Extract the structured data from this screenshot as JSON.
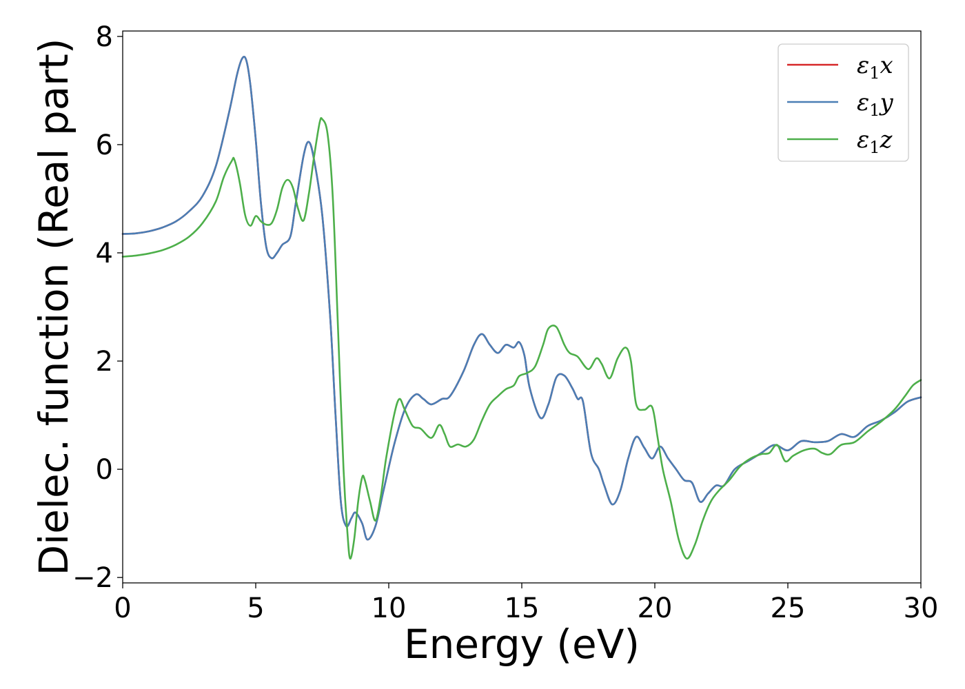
{
  "chart_data": {
    "type": "line",
    "xlabel": "Energy (eV)",
    "ylabel": "Dielec. function (Real part)",
    "xlim": [
      0,
      30
    ],
    "ylim": [
      -2.1,
      8.1
    ],
    "x_ticks": [
      0,
      5,
      10,
      15,
      20,
      25,
      30
    ],
    "y_ticks": [
      -2,
      0,
      2,
      4,
      6,
      8
    ],
    "x_tick_labels": [
      "0",
      "5",
      "10",
      "15",
      "20",
      "25",
      "30"
    ],
    "y_tick_labels": [
      "−2",
      "0",
      "2",
      "4",
      "6",
      "8"
    ],
    "grid": false,
    "legend_position": "top-right",
    "series": [
      {
        "name": "ε1x",
        "label_base": "ε",
        "label_sub": "1",
        "label_axis": "x",
        "color": "#d62728",
        "points": [
          [
            0,
            4.35
          ],
          [
            0.5,
            4.36
          ],
          [
            1,
            4.4
          ],
          [
            1.5,
            4.47
          ],
          [
            2,
            4.58
          ],
          [
            2.5,
            4.77
          ],
          [
            3,
            5.05
          ],
          [
            3.5,
            5.6
          ],
          [
            4,
            6.6
          ],
          [
            4.3,
            7.3
          ],
          [
            4.5,
            7.6
          ],
          [
            4.65,
            7.55
          ],
          [
            4.8,
            7.1
          ],
          [
            5,
            6.1
          ],
          [
            5.2,
            4.9
          ],
          [
            5.4,
            4.1
          ],
          [
            5.6,
            3.9
          ],
          [
            5.8,
            4.0
          ],
          [
            6,
            4.15
          ],
          [
            6.3,
            4.3
          ],
          [
            6.5,
            4.9
          ],
          [
            6.8,
            5.8
          ],
          [
            7,
            6.05
          ],
          [
            7.2,
            5.7
          ],
          [
            7.5,
            4.7
          ],
          [
            7.8,
            2.8
          ],
          [
            8,
            1.0
          ],
          [
            8.2,
            -0.6
          ],
          [
            8.4,
            -1.05
          ],
          [
            8.6,
            -0.9
          ],
          [
            8.75,
            -0.8
          ],
          [
            9,
            -1.0
          ],
          [
            9.2,
            -1.3
          ],
          [
            9.5,
            -1.05
          ],
          [
            9.8,
            -0.4
          ],
          [
            10.2,
            0.45
          ],
          [
            10.6,
            1.1
          ],
          [
            11,
            1.38
          ],
          [
            11.3,
            1.3
          ],
          [
            11.6,
            1.2
          ],
          [
            12,
            1.3
          ],
          [
            12.3,
            1.35
          ],
          [
            12.8,
            1.8
          ],
          [
            13.2,
            2.3
          ],
          [
            13.5,
            2.5
          ],
          [
            13.8,
            2.3
          ],
          [
            14.1,
            2.15
          ],
          [
            14.4,
            2.3
          ],
          [
            14.7,
            2.25
          ],
          [
            14.9,
            2.35
          ],
          [
            15.1,
            2.1
          ],
          [
            15.3,
            1.5
          ],
          [
            15.7,
            0.95
          ],
          [
            16,
            1.2
          ],
          [
            16.3,
            1.7
          ],
          [
            16.6,
            1.73
          ],
          [
            16.9,
            1.5
          ],
          [
            17.1,
            1.3
          ],
          [
            17.3,
            1.25
          ],
          [
            17.6,
            0.3
          ],
          [
            17.9,
            0.0
          ],
          [
            18.1,
            -0.3
          ],
          [
            18.4,
            -0.65
          ],
          [
            18.7,
            -0.4
          ],
          [
            19,
            0.2
          ],
          [
            19.3,
            0.6
          ],
          [
            19.6,
            0.4
          ],
          [
            19.9,
            0.2
          ],
          [
            20.2,
            0.42
          ],
          [
            20.5,
            0.2
          ],
          [
            20.8,
            0.0
          ],
          [
            21.1,
            -0.2
          ],
          [
            21.4,
            -0.25
          ],
          [
            21.7,
            -0.6
          ],
          [
            22,
            -0.45
          ],
          [
            22.3,
            -0.3
          ],
          [
            22.6,
            -0.3
          ],
          [
            23,
            0.0
          ],
          [
            23.5,
            0.15
          ],
          [
            24,
            0.3
          ],
          [
            24.5,
            0.45
          ],
          [
            25,
            0.35
          ],
          [
            25.5,
            0.52
          ],
          [
            26,
            0.5
          ],
          [
            26.5,
            0.52
          ],
          [
            27,
            0.65
          ],
          [
            27.5,
            0.6
          ],
          [
            28,
            0.8
          ],
          [
            28.5,
            0.9
          ],
          [
            29,
            1.05
          ],
          [
            29.5,
            1.25
          ],
          [
            30,
            1.33
          ]
        ]
      },
      {
        "name": "ε1y",
        "label_base": "ε",
        "label_sub": "1",
        "label_axis": "y",
        "color": "#4a7eb5",
        "points": [
          [
            0,
            4.35
          ],
          [
            0.5,
            4.36
          ],
          [
            1,
            4.4
          ],
          [
            1.5,
            4.47
          ],
          [
            2,
            4.58
          ],
          [
            2.5,
            4.77
          ],
          [
            3,
            5.05
          ],
          [
            3.5,
            5.6
          ],
          [
            4,
            6.6
          ],
          [
            4.3,
            7.3
          ],
          [
            4.5,
            7.6
          ],
          [
            4.65,
            7.55
          ],
          [
            4.8,
            7.1
          ],
          [
            5,
            6.1
          ],
          [
            5.2,
            4.9
          ],
          [
            5.4,
            4.1
          ],
          [
            5.6,
            3.9
          ],
          [
            5.8,
            4.0
          ],
          [
            6,
            4.15
          ],
          [
            6.3,
            4.3
          ],
          [
            6.5,
            4.9
          ],
          [
            6.8,
            5.8
          ],
          [
            7,
            6.05
          ],
          [
            7.2,
            5.7
          ],
          [
            7.5,
            4.7
          ],
          [
            7.8,
            2.8
          ],
          [
            8,
            1.0
          ],
          [
            8.2,
            -0.6
          ],
          [
            8.4,
            -1.05
          ],
          [
            8.6,
            -0.9
          ],
          [
            8.75,
            -0.8
          ],
          [
            9,
            -1.0
          ],
          [
            9.2,
            -1.3
          ],
          [
            9.5,
            -1.05
          ],
          [
            9.8,
            -0.4
          ],
          [
            10.2,
            0.45
          ],
          [
            10.6,
            1.1
          ],
          [
            11,
            1.38
          ],
          [
            11.3,
            1.3
          ],
          [
            11.6,
            1.2
          ],
          [
            12,
            1.3
          ],
          [
            12.3,
            1.35
          ],
          [
            12.8,
            1.8
          ],
          [
            13.2,
            2.3
          ],
          [
            13.5,
            2.5
          ],
          [
            13.8,
            2.3
          ],
          [
            14.1,
            2.15
          ],
          [
            14.4,
            2.3
          ],
          [
            14.7,
            2.25
          ],
          [
            14.9,
            2.35
          ],
          [
            15.1,
            2.1
          ],
          [
            15.3,
            1.5
          ],
          [
            15.7,
            0.95
          ],
          [
            16,
            1.2
          ],
          [
            16.3,
            1.7
          ],
          [
            16.6,
            1.73
          ],
          [
            16.9,
            1.5
          ],
          [
            17.1,
            1.3
          ],
          [
            17.3,
            1.25
          ],
          [
            17.6,
            0.3
          ],
          [
            17.9,
            0.0
          ],
          [
            18.1,
            -0.3
          ],
          [
            18.4,
            -0.65
          ],
          [
            18.7,
            -0.4
          ],
          [
            19,
            0.2
          ],
          [
            19.3,
            0.6
          ],
          [
            19.6,
            0.4
          ],
          [
            19.9,
            0.2
          ],
          [
            20.2,
            0.42
          ],
          [
            20.5,
            0.2
          ],
          [
            20.8,
            0.0
          ],
          [
            21.1,
            -0.2
          ],
          [
            21.4,
            -0.25
          ],
          [
            21.7,
            -0.6
          ],
          [
            22,
            -0.45
          ],
          [
            22.3,
            -0.3
          ],
          [
            22.6,
            -0.3
          ],
          [
            23,
            0.0
          ],
          [
            23.5,
            0.15
          ],
          [
            24,
            0.3
          ],
          [
            24.5,
            0.45
          ],
          [
            25,
            0.35
          ],
          [
            25.5,
            0.52
          ],
          [
            26,
            0.5
          ],
          [
            26.5,
            0.52
          ],
          [
            27,
            0.65
          ],
          [
            27.5,
            0.6
          ],
          [
            28,
            0.8
          ],
          [
            28.5,
            0.9
          ],
          [
            29,
            1.05
          ],
          [
            29.5,
            1.25
          ],
          [
            30,
            1.33
          ]
        ]
      },
      {
        "name": "ε1z",
        "label_base": "ε",
        "label_sub": "1",
        "label_axis": "z",
        "color": "#4daf4a",
        "points": [
          [
            0,
            3.93
          ],
          [
            0.5,
            3.95
          ],
          [
            1,
            3.99
          ],
          [
            1.5,
            4.05
          ],
          [
            2,
            4.15
          ],
          [
            2.5,
            4.3
          ],
          [
            3,
            4.55
          ],
          [
            3.5,
            4.95
          ],
          [
            3.8,
            5.4
          ],
          [
            4.1,
            5.7
          ],
          [
            4.2,
            5.72
          ],
          [
            4.4,
            5.3
          ],
          [
            4.6,
            4.7
          ],
          [
            4.8,
            4.5
          ],
          [
            5,
            4.68
          ],
          [
            5.2,
            4.58
          ],
          [
            5.4,
            4.52
          ],
          [
            5.6,
            4.55
          ],
          [
            5.8,
            4.8
          ],
          [
            6,
            5.2
          ],
          [
            6.2,
            5.35
          ],
          [
            6.4,
            5.2
          ],
          [
            6.6,
            4.8
          ],
          [
            6.8,
            4.6
          ],
          [
            7,
            5.1
          ],
          [
            7.2,
            5.8
          ],
          [
            7.4,
            6.4
          ],
          [
            7.5,
            6.47
          ],
          [
            7.7,
            6.2
          ],
          [
            7.9,
            5.0
          ],
          [
            8.1,
            2.5
          ],
          [
            8.3,
            0.0
          ],
          [
            8.45,
            -1.2
          ],
          [
            8.55,
            -1.65
          ],
          [
            8.7,
            -1.3
          ],
          [
            8.85,
            -0.6
          ],
          [
            9,
            -0.15
          ],
          [
            9.1,
            -0.2
          ],
          [
            9.3,
            -0.6
          ],
          [
            9.5,
            -0.95
          ],
          [
            9.7,
            -0.5
          ],
          [
            9.9,
            0.2
          ],
          [
            10.2,
            1.0
          ],
          [
            10.4,
            1.3
          ],
          [
            10.6,
            1.1
          ],
          [
            10.9,
            0.8
          ],
          [
            11.2,
            0.75
          ],
          [
            11.6,
            0.58
          ],
          [
            11.9,
            0.82
          ],
          [
            12.1,
            0.65
          ],
          [
            12.3,
            0.42
          ],
          [
            12.6,
            0.46
          ],
          [
            12.9,
            0.42
          ],
          [
            13.2,
            0.55
          ],
          [
            13.5,
            0.9
          ],
          [
            13.8,
            1.2
          ],
          [
            14.1,
            1.35
          ],
          [
            14.4,
            1.48
          ],
          [
            14.7,
            1.55
          ],
          [
            14.9,
            1.72
          ],
          [
            15.2,
            1.78
          ],
          [
            15.5,
            1.9
          ],
          [
            15.8,
            2.3
          ],
          [
            16,
            2.6
          ],
          [
            16.3,
            2.63
          ],
          [
            16.6,
            2.3
          ],
          [
            16.8,
            2.15
          ],
          [
            17.1,
            2.08
          ],
          [
            17.5,
            1.85
          ],
          [
            17.8,
            2.05
          ],
          [
            18,
            1.95
          ],
          [
            18.3,
            1.68
          ],
          [
            18.6,
            2.05
          ],
          [
            18.9,
            2.25
          ],
          [
            19.1,
            2.0
          ],
          [
            19.3,
            1.2
          ],
          [
            19.6,
            1.1
          ],
          [
            19.9,
            1.15
          ],
          [
            20.1,
            0.6
          ],
          [
            20.3,
            0.0
          ],
          [
            20.6,
            -0.6
          ],
          [
            20.9,
            -1.3
          ],
          [
            21.2,
            -1.65
          ],
          [
            21.5,
            -1.4
          ],
          [
            21.8,
            -0.95
          ],
          [
            22.1,
            -0.6
          ],
          [
            22.4,
            -0.4
          ],
          [
            22.8,
            -0.2
          ],
          [
            23.2,
            0.05
          ],
          [
            23.6,
            0.2
          ],
          [
            24,
            0.28
          ],
          [
            24.3,
            0.3
          ],
          [
            24.6,
            0.45
          ],
          [
            24.9,
            0.15
          ],
          [
            25.2,
            0.25
          ],
          [
            25.6,
            0.35
          ],
          [
            26,
            0.38
          ],
          [
            26.3,
            0.3
          ],
          [
            26.6,
            0.28
          ],
          [
            27,
            0.45
          ],
          [
            27.5,
            0.5
          ],
          [
            28,
            0.7
          ],
          [
            28.5,
            0.88
          ],
          [
            29,
            1.1
          ],
          [
            29.4,
            1.35
          ],
          [
            29.7,
            1.55
          ],
          [
            30,
            1.65
          ]
        ]
      }
    ]
  }
}
